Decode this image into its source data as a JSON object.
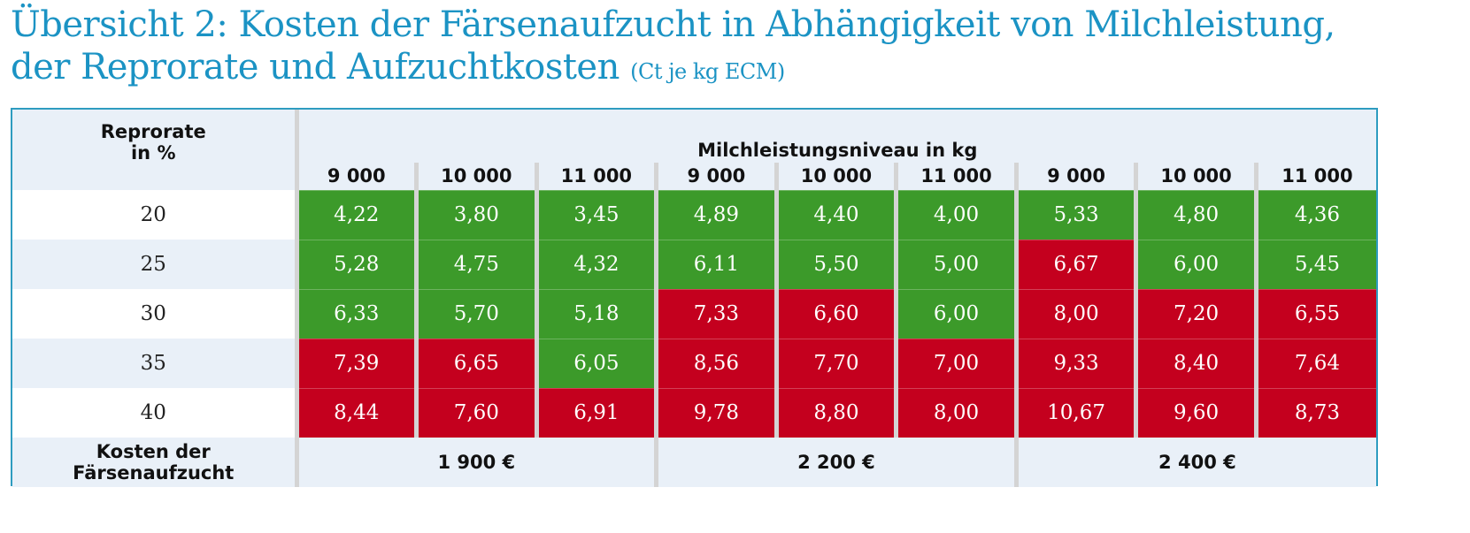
{
  "title": {
    "line1": "Übersicht 2: Kosten der Färsenaufzucht in Abhängigkeit von Milchleistung,",
    "line2": "der Reprorate und Aufzuchtkosten",
    "unit": "(Ct je kg ECM)"
  },
  "table": {
    "row_header_line1": "Reprorate",
    "row_header_line2": "in %",
    "column_group_header": "Milchleistungsniveau in kg",
    "columns": [
      "9 000",
      "10 000",
      "11 000",
      "9 000",
      "10 000",
      "11 000",
      "9 000",
      "10 000",
      "11 000"
    ],
    "rows": [
      {
        "label": "20",
        "values": [
          "4,22",
          "3,80",
          "3,45",
          "4,89",
          "4,40",
          "4,00",
          "5,33",
          "4,80",
          "4,36"
        ],
        "status": [
          "green",
          "green",
          "green",
          "green",
          "green",
          "green",
          "green",
          "green",
          "green"
        ]
      },
      {
        "label": "25",
        "values": [
          "5,28",
          "4,75",
          "4,32",
          "6,11",
          "5,50",
          "5,00",
          "6,67",
          "6,00",
          "5,45"
        ],
        "status": [
          "green",
          "green",
          "green",
          "green",
          "green",
          "green",
          "red",
          "green",
          "green"
        ]
      },
      {
        "label": "30",
        "values": [
          "6,33",
          "5,70",
          "5,18",
          "7,33",
          "6,60",
          "6,00",
          "8,00",
          "7,20",
          "6,55"
        ],
        "status": [
          "green",
          "green",
          "green",
          "red",
          "red",
          "green",
          "red",
          "red",
          "red"
        ]
      },
      {
        "label": "35",
        "values": [
          "7,39",
          "6,65",
          "6,05",
          "8,56",
          "7,70",
          "7,00",
          "9,33",
          "8,40",
          "7,64"
        ],
        "status": [
          "red",
          "red",
          "green",
          "red",
          "red",
          "red",
          "red",
          "red",
          "red"
        ]
      },
      {
        "label": "40",
        "values": [
          "8,44",
          "7,60",
          "6,91",
          "9,78",
          "8,80",
          "8,00",
          "10,67",
          "9,60",
          "8,73"
        ],
        "status": [
          "red",
          "red",
          "red",
          "red",
          "red",
          "red",
          "red",
          "red",
          "red"
        ]
      }
    ],
    "footer_label": "Kosten der Färsenaufzucht",
    "footer_values": [
      "1 900 €",
      "2 200 €",
      "2 400 €"
    ]
  },
  "colors": {
    "title": "#1b93c4",
    "border": "#2e9cc0",
    "green": "#3c9a2a",
    "red": "#c4001e",
    "header_bg": "#e9f0f8"
  }
}
